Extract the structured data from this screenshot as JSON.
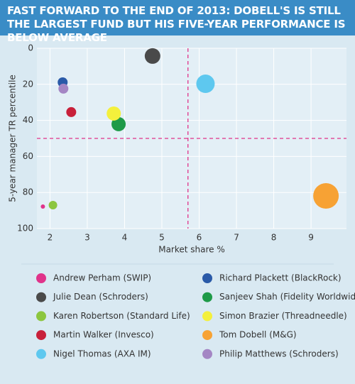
{
  "chart_data": {
    "type": "bubble",
    "title": "FAST FORWARD TO THE END OF 2013: DOBELL'S IS STILL THE LARGEST FUND BUT HIS FIVE-YEAR PERFORMANCE IS BELOW AVERAGE",
    "x_label": "Market share %",
    "y_label": "5-year manager TR percentile",
    "xlim": [
      1.65,
      9.95
    ],
    "xticks": [
      2,
      3,
      4,
      5,
      6,
      7,
      8,
      9
    ],
    "ylim": [
      100,
      0
    ],
    "yticks": [
      0,
      20,
      40,
      60,
      80,
      100
    ],
    "grid": true,
    "x_reference": 5.7,
    "y_reference": 50,
    "series": [
      {
        "name": "Andrew Perham (SWIP)",
        "color": "#e0338a",
        "x": [
          1.81
        ],
        "values": [
          87.8
        ],
        "sizes": [
          3
        ]
      },
      {
        "name": "Richard Plackett (BlackRock)",
        "color": "#2a5aa8",
        "x": [
          2.34
        ],
        "values": [
          18.9
        ],
        "sizes": [
          7
        ]
      },
      {
        "name": "Julie Dean (Schroders)",
        "color": "#4a4a4a",
        "x": [
          4.75
        ],
        "values": [
          4.3
        ],
        "sizes": [
          11
        ]
      },
      {
        "name": "Sanjeev Shah (Fidelity Worldwide)",
        "color": "#1e9a48",
        "x": [
          3.84
        ],
        "values": [
          42.1
        ],
        "sizes": [
          10
        ]
      },
      {
        "name": "Karen Robertson (Standard Life)",
        "color": "#8cc63f",
        "x": [
          2.08
        ],
        "values": [
          87
        ],
        "sizes": [
          6
        ]
      },
      {
        "name": "Simon Brazier (Threadneedle)",
        "color": "#f4f03c",
        "x": [
          3.71
        ],
        "values": [
          36.2
        ],
        "sizes": [
          10
        ]
      },
      {
        "name": "Martin Walker (Invesco)",
        "color": "#c8203a",
        "x": [
          2.57
        ],
        "values": [
          35.4
        ],
        "sizes": [
          7
        ]
      },
      {
        "name": "Tom Dobell (M&G)",
        "color": "#f7a234",
        "x": [
          9.4
        ],
        "values": [
          81.9
        ],
        "sizes": [
          18
        ]
      },
      {
        "name": "Nigel Thomas (AXA IM)",
        "color": "#5ec8ef",
        "x": [
          6.17
        ],
        "values": [
          19.7
        ],
        "sizes": [
          13
        ]
      },
      {
        "name": "Philip Matthews (Schroders)",
        "color": "#a486c4",
        "x": [
          2.36
        ],
        "values": [
          22.4
        ],
        "sizes": [
          7
        ]
      }
    ]
  }
}
